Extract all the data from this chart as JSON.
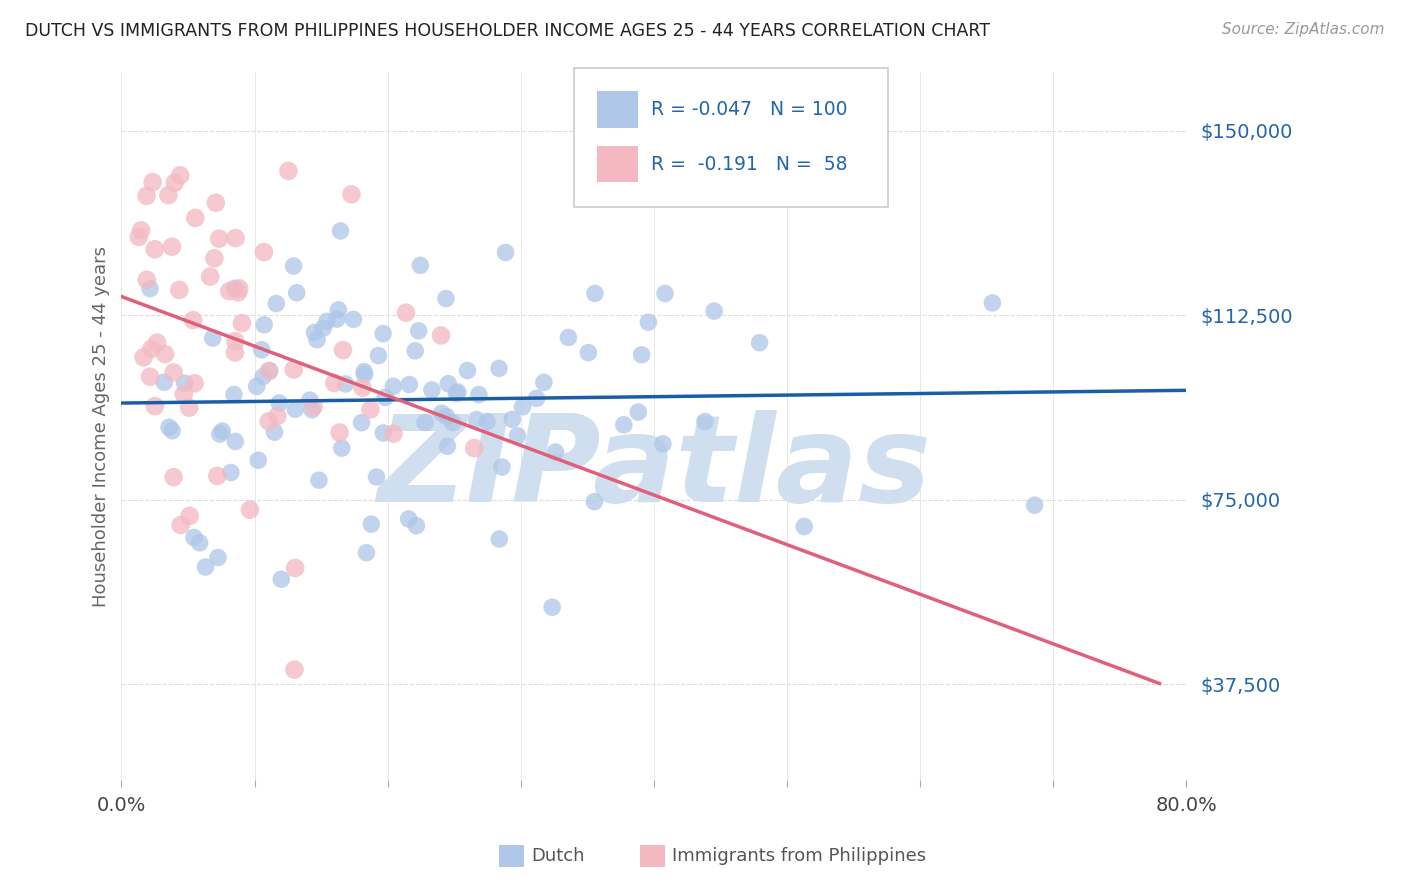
{
  "title": "DUTCH VS IMMIGRANTS FROM PHILIPPINES HOUSEHOLDER INCOME AGES 25 - 44 YEARS CORRELATION CHART",
  "source": "Source: ZipAtlas.com",
  "ylabel": "Householder Income Ages 25 - 44 years",
  "yticks": [
    37500,
    75000,
    112500,
    150000
  ],
  "ytick_labels": [
    "$37,500",
    "$75,000",
    "$112,500",
    "$150,000"
  ],
  "xmin": 0.0,
  "xmax": 0.8,
  "ymin": 18000,
  "ymax": 162000,
  "legend_dutch_R": "-0.047",
  "legend_dutch_N": "100",
  "legend_phil_R": "-0.191",
  "legend_phil_N": "58",
  "dutch_color": "#aec6e8",
  "phil_color": "#f4b8c1",
  "trend_dutch_color": "#1a5ea8",
  "trend_phil_color": "#e0607a",
  "background_color": "#ffffff",
  "watermark": "ZIPatlas",
  "watermark_color": "#d0dff0",
  "title_color": "#222222",
  "source_color": "#999999",
  "ylabel_color": "#666666",
  "ytick_color": "#2166ac",
  "grid_color": "#dddddd",
  "legend_border_color": "#cccccc",
  "legend_text_color": "#2166ac",
  "bottom_legend_text_color": "#555555",
  "dutch_seed": 42,
  "phil_seed": 99
}
